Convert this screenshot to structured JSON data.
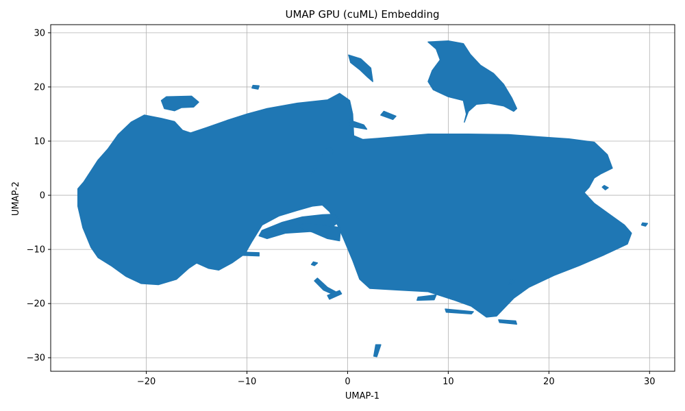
{
  "chart_data": {
    "type": "scatter",
    "title": "UMAP GPU (cuML) Embedding",
    "xlabel": "UMAP-1",
    "ylabel": "UMAP-2",
    "xlim": [
      -29.5,
      32.5
    ],
    "ylim": [
      -32.5,
      31.5
    ],
    "xticks": [
      -20,
      -10,
      0,
      10,
      20,
      30
    ],
    "yticks": [
      -30,
      -20,
      -10,
      0,
      10,
      20,
      30
    ],
    "xtick_labels": [
      "−20",
      "−10",
      "0",
      "10",
      "20",
      "30"
    ],
    "ytick_labels": [
      "−30",
      "−20",
      "−10",
      "0",
      "10",
      "20",
      "30"
    ],
    "grid": true,
    "color": "#1f77b4",
    "series": [
      {
        "regions": [
          {
            "id": "main-body",
            "polygon": [
              [
                -26.8,
                1.2
              ],
              [
                -26.2,
                2.5
              ],
              [
                -25.5,
                4.5
              ],
              [
                -24.8,
                6.5
              ],
              [
                -23.8,
                8.6
              ],
              [
                -22.8,
                11.2
              ],
              [
                -21.5,
                13.5
              ],
              [
                -20.2,
                14.8
              ],
              [
                -18.5,
                14.2
              ],
              [
                -17.2,
                13.6
              ],
              [
                -16.4,
                12.0
              ],
              [
                -15.6,
                11.5
              ],
              [
                -14.0,
                12.5
              ],
              [
                -12.0,
                13.8
              ],
              [
                -10.0,
                15.0
              ],
              [
                -8.0,
                16.0
              ],
              [
                -5.0,
                17.0
              ],
              [
                -2.0,
                17.6
              ],
              [
                -0.8,
                18.8
              ],
              [
                0.2,
                17.5
              ],
              [
                0.5,
                15.0
              ],
              [
                0.6,
                11.0
              ],
              [
                1.5,
                10.3
              ],
              [
                3.0,
                10.5
              ],
              [
                8.0,
                11.3
              ],
              [
                12.0,
                11.3
              ],
              [
                16.0,
                11.2
              ],
              [
                19.0,
                10.8
              ],
              [
                22.0,
                10.4
              ],
              [
                24.5,
                9.8
              ],
              [
                25.8,
                7.5
              ],
              [
                26.3,
                5.0
              ],
              [
                25.2,
                4.0
              ],
              [
                24.5,
                3.2
              ],
              [
                24.0,
                1.5
              ],
              [
                23.5,
                0.5
              ],
              [
                24.5,
                -1.5
              ],
              [
                26.0,
                -3.5
              ],
              [
                27.5,
                -5.5
              ],
              [
                28.2,
                -7.0
              ],
              [
                27.8,
                -9.0
              ],
              [
                25.5,
                -11.0
              ],
              [
                23.0,
                -13.0
              ],
              [
                20.5,
                -14.8
              ],
              [
                18.0,
                -17.0
              ],
              [
                16.5,
                -19.0
              ],
              [
                14.8,
                -22.3
              ],
              [
                13.8,
                -22.5
              ],
              [
                12.3,
                -20.5
              ],
              [
                10.5,
                -19.3
              ],
              [
                8.0,
                -17.8
              ],
              [
                5.0,
                -17.5
              ],
              [
                2.2,
                -17.2
              ],
              [
                1.2,
                -15.5
              ],
              [
                0.5,
                -12.0
              ],
              [
                -0.4,
                -8.0
              ],
              [
                -1.0,
                -5.5
              ],
              [
                -1.8,
                -3.0
              ],
              [
                -2.5,
                -1.8
              ],
              [
                -3.5,
                -2.0
              ],
              [
                -5.0,
                -2.8
              ],
              [
                -6.8,
                -3.8
              ],
              [
                -8.5,
                -5.5
              ],
              [
                -9.5,
                -8.5
              ],
              [
                -10.2,
                -10.8
              ],
              [
                -11.5,
                -12.5
              ],
              [
                -12.8,
                -13.8
              ],
              [
                -13.8,
                -13.5
              ],
              [
                -15.0,
                -12.5
              ],
              [
                -15.8,
                -13.5
              ],
              [
                -17.0,
                -15.5
              ],
              [
                -18.8,
                -16.5
              ],
              [
                -20.5,
                -16.3
              ],
              [
                -22.0,
                -15.0
              ],
              [
                -23.5,
                -13.0
              ],
              [
                -24.8,
                -11.5
              ],
              [
                -25.5,
                -9.6
              ],
              [
                -26.3,
                -6.0
              ],
              [
                -26.8,
                -2.0
              ]
            ]
          },
          {
            "id": "cluster-top-right",
            "polygon": [
              [
                8.0,
                28.3
              ],
              [
                10.0,
                28.5
              ],
              [
                11.5,
                28.0
              ],
              [
                12.2,
                26.0
              ],
              [
                13.2,
                24.0
              ],
              [
                14.5,
                22.5
              ],
              [
                15.5,
                20.5
              ],
              [
                16.3,
                18.0
              ],
              [
                16.8,
                16.0
              ],
              [
                16.5,
                15.5
              ],
              [
                15.5,
                16.5
              ],
              [
                14.0,
                17.0
              ],
              [
                12.8,
                16.8
              ],
              [
                12.0,
                15.5
              ],
              [
                11.6,
                13.5
              ],
              [
                11.8,
                15.0
              ],
              [
                11.5,
                17.5
              ],
              [
                10.0,
                18.2
              ],
              [
                8.5,
                19.5
              ],
              [
                8.0,
                21.0
              ],
              [
                8.4,
                23.0
              ],
              [
                9.2,
                25.0
              ],
              [
                8.8,
                27.0
              ]
            ]
          },
          {
            "id": "cluster-upper-left",
            "polygon": [
              [
                -18.0,
                18.2
              ],
              [
                -15.5,
                18.3
              ],
              [
                -14.8,
                17.2
              ],
              [
                -15.3,
                16.3
              ],
              [
                -16.5,
                16.2
              ],
              [
                -17.2,
                15.6
              ],
              [
                -18.2,
                16.0
              ],
              [
                -18.5,
                17.5
              ]
            ]
          },
          {
            "id": "cluster-small-a",
            "polygon": [
              [
                -9.4,
                20.3
              ],
              [
                -8.8,
                20.2
              ],
              [
                -8.9,
                19.6
              ],
              [
                -9.5,
                19.8
              ]
            ]
          },
          {
            "id": "cluster-arc-top",
            "polygon": [
              [
                0.1,
                25.9
              ],
              [
                1.3,
                25.2
              ],
              [
                2.3,
                23.5
              ],
              [
                2.5,
                21.0
              ],
              [
                2.0,
                21.8
              ],
              [
                1.2,
                23.2
              ],
              [
                0.3,
                24.5
              ]
            ]
          },
          {
            "id": "cluster-wedge-left",
            "polygon": [
              [
                -3.7,
                4.0
              ],
              [
                -3.0,
                6.5
              ],
              [
                -2.2,
                8.5
              ],
              [
                -1.6,
                8.8
              ],
              [
                -1.4,
                7.5
              ],
              [
                -2.2,
                6.2
              ],
              [
                -3.0,
                4.8
              ]
            ]
          },
          {
            "id": "cluster-small-b",
            "polygon": [
              [
                0.0,
                14.0
              ],
              [
                1.6,
                13.0
              ],
              [
                1.9,
                12.2
              ],
              [
                0.3,
                12.7
              ]
            ]
          },
          {
            "id": "cluster-small-c",
            "polygon": [
              [
                3.6,
                15.5
              ],
              [
                4.8,
                14.6
              ],
              [
                4.5,
                14.0
              ],
              [
                3.3,
                14.8
              ]
            ]
          },
          {
            "id": "cluster-band-middle",
            "polygon": [
              [
                -8.5,
                -6.5
              ],
              [
                -6.5,
                -5.0
              ],
              [
                -4.5,
                -4.0
              ],
              [
                -2.5,
                -3.6
              ],
              [
                -1.2,
                -3.5
              ],
              [
                -0.8,
                -4.8
              ],
              [
                -2.0,
                -6.5
              ],
              [
                -4.5,
                -6.8
              ],
              [
                -6.2,
                -7.0
              ],
              [
                -8.0,
                -8.0
              ],
              [
                -8.8,
                -7.5
              ]
            ]
          },
          {
            "id": "cluster-band-lower",
            "polygon": [
              [
                -4.7,
                -5.3
              ],
              [
                -2.2,
                -5.5
              ],
              [
                -0.7,
                -6.0
              ],
              [
                -0.8,
                -8.4
              ],
              [
                -2.0,
                -8.0
              ],
              [
                -3.5,
                -6.8
              ],
              [
                -4.6,
                -6.2
              ]
            ]
          },
          {
            "id": "cluster-small-d",
            "polygon": [
              [
                -3.4,
                -12.3
              ],
              [
                -3.0,
                -12.5
              ],
              [
                -3.3,
                -13.0
              ],
              [
                -3.6,
                -12.8
              ]
            ]
          },
          {
            "id": "cluster-small-e",
            "polygon": [
              [
                -3.0,
                -15.3
              ],
              [
                -2.0,
                -17.0
              ],
              [
                -1.0,
                -18.0
              ],
              [
                -1.2,
                -18.5
              ],
              [
                -2.4,
                -17.5
              ],
              [
                -3.3,
                -15.8
              ]
            ]
          },
          {
            "id": "cluster-small-f",
            "polygon": [
              [
                -2.0,
                -18.5
              ],
              [
                -0.8,
                -17.6
              ],
              [
                -0.6,
                -18.2
              ],
              [
                -1.8,
                -19.2
              ]
            ]
          },
          {
            "id": "cluster-small-g",
            "polygon": [
              [
                7.0,
                -18.8
              ],
              [
                8.8,
                -18.4
              ],
              [
                8.6,
                -19.3
              ],
              [
                6.9,
                -19.4
              ]
            ]
          },
          {
            "id": "cluster-small-h",
            "polygon": [
              [
                9.7,
                -21.0
              ],
              [
                12.5,
                -21.5
              ],
              [
                12.3,
                -21.9
              ],
              [
                9.8,
                -21.6
              ]
            ]
          },
          {
            "id": "cluster-small-i",
            "polygon": [
              [
                15.0,
                -23.0
              ],
              [
                16.7,
                -23.2
              ],
              [
                16.8,
                -23.8
              ],
              [
                15.1,
                -23.5
              ]
            ]
          },
          {
            "id": "cluster-small-j",
            "polygon": [
              [
                2.8,
                -27.6
              ],
              [
                3.3,
                -27.6
              ],
              [
                2.9,
                -29.8
              ],
              [
                2.6,
                -29.7
              ]
            ]
          },
          {
            "id": "cluster-small-k",
            "polygon": [
              [
                25.5,
                1.8
              ],
              [
                25.9,
                1.4
              ],
              [
                25.6,
                1.0
              ],
              [
                25.3,
                1.5
              ]
            ]
          },
          {
            "id": "cluster-small-l",
            "polygon": [
              [
                29.3,
                -5.1
              ],
              [
                29.8,
                -5.2
              ],
              [
                29.6,
                -5.7
              ],
              [
                29.2,
                -5.5
              ]
            ]
          },
          {
            "id": "cluster-small-m",
            "polygon": [
              [
                16.0,
                -15.8
              ],
              [
                16.6,
                -15.6
              ],
              [
                16.5,
                -16.3
              ],
              [
                16.0,
                -16.4
              ]
            ]
          },
          {
            "id": "cluster-small-n",
            "polygon": [
              [
                -10.5,
                -10.5
              ],
              [
                -8.8,
                -10.6
              ],
              [
                -8.8,
                -11.2
              ],
              [
                -10.4,
                -11.1
              ]
            ]
          }
        ]
      }
    ]
  }
}
